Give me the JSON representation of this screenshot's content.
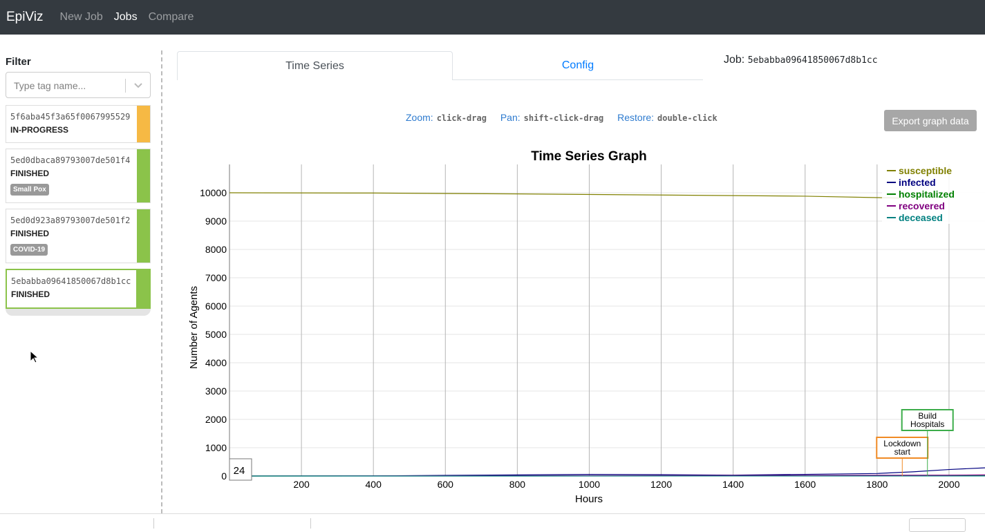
{
  "nav": {
    "brand": "EpiViz",
    "links": [
      "New Job",
      "Jobs",
      "Compare"
    ],
    "active": "Jobs"
  },
  "sidebar": {
    "filter_label": "Filter",
    "search_placeholder": "Type tag name...",
    "jobs": [
      {
        "id": "5f6aba45f3a65f0067995529",
        "status": "IN-PROGRESS",
        "tag": "",
        "color": "#f6b944"
      },
      {
        "id": "5ed0dbaca89793007de501f4",
        "status": "FINISHED",
        "tag": "Small Pox",
        "color": "#8bc34a"
      },
      {
        "id": "5ed0d923a89793007de501f2",
        "status": "FINISHED",
        "tag": "COVID-19",
        "color": "#8bc34a"
      },
      {
        "id": "5ebabba09641850067d8b1cc",
        "status": "FINISHED",
        "tag": "",
        "color": "#8bc34a",
        "selected": true
      }
    ]
  },
  "tabs": {
    "time_series": "Time Series",
    "config": "Config"
  },
  "job": {
    "label": "Job:",
    "id": "5ebabba09641850067d8b1cc"
  },
  "hints": {
    "zoom_label": "Zoom:",
    "zoom_key": "click-drag",
    "pan_label": "Pan:",
    "pan_key": "shift-click-drag",
    "restore_label": "Restore:",
    "restore_key": "double-click"
  },
  "export_button": "Export graph data",
  "chart_data": {
    "type": "line",
    "title": "Time Series Graph",
    "xlabel": "Hours",
    "ylabel": "Number of Agents",
    "xlim": [
      0,
      2100
    ],
    "ylim": [
      0,
      11000
    ],
    "xticks": [
      200,
      400,
      600,
      800,
      1000,
      1200,
      1400,
      1600,
      1800,
      2000
    ],
    "yticks": [
      0,
      1000,
      2000,
      3000,
      4000,
      5000,
      6000,
      7000,
      8000,
      9000,
      10000
    ],
    "grid": true,
    "legend_position": "top-right",
    "series": [
      {
        "name": "susceptible",
        "color": "#808000",
        "x": [
          0,
          400,
          800,
          1200,
          1600,
          1800,
          1870
        ],
        "y": [
          10000,
          9990,
          9960,
          9920,
          9880,
          9830,
          9810
        ]
      },
      {
        "name": "infected",
        "color": "#000080",
        "x": [
          0,
          400,
          800,
          1000,
          1200,
          1400,
          1600,
          1800,
          1900,
          2000,
          2100
        ],
        "y": [
          0,
          5,
          40,
          60,
          50,
          30,
          60,
          90,
          150,
          230,
          290
        ]
      },
      {
        "name": "hospitalized",
        "color": "#008000",
        "x": [
          0,
          1000,
          2000,
          2100
        ],
        "y": [
          0,
          3,
          5,
          8
        ]
      },
      {
        "name": "recovered",
        "color": "#800080",
        "x": [
          0,
          1000,
          2000,
          2100
        ],
        "y": [
          0,
          15,
          30,
          40
        ]
      },
      {
        "name": "deceased",
        "color": "#008080",
        "x": [
          0,
          1000,
          2000,
          2100
        ],
        "y": [
          0,
          1,
          2,
          3
        ]
      }
    ],
    "annotations": [
      {
        "label_lines": [
          "Lockdown",
          "start"
        ],
        "x": 1870,
        "color": "#f08a24"
      },
      {
        "label_lines": [
          "Build",
          "Hospitals"
        ],
        "x": 1940,
        "color": "#3cad4a"
      }
    ],
    "marker_label": "24"
  },
  "colors": {
    "navbar": "#343a40",
    "link": "#007bff",
    "finished": "#8bc34a",
    "in_progress": "#f6b944"
  }
}
